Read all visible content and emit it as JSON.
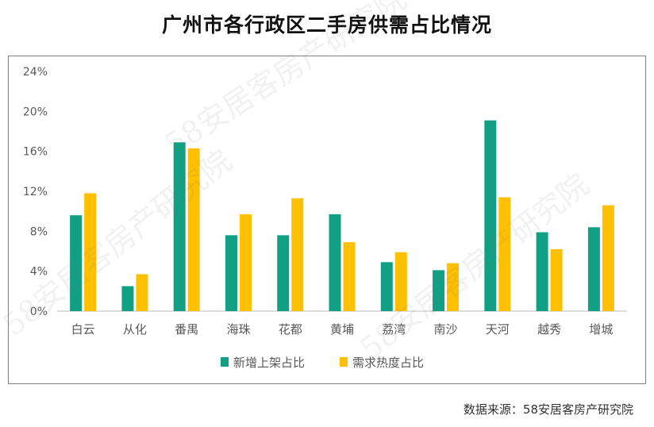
{
  "chart_data": {
    "type": "bar",
    "title": "广州市各行政区二手房供需占比情况",
    "categories": [
      "白云",
      "从化",
      "番禺",
      "海珠",
      "花都",
      "黄埔",
      "荔湾",
      "南沙",
      "天河",
      "越秀",
      "增城"
    ],
    "series": [
      {
        "name": "新增上架占比",
        "color": "#12a085",
        "values": [
          9.6,
          2.5,
          16.9,
          7.6,
          7.6,
          9.7,
          4.9,
          4.1,
          19.1,
          7.9,
          8.4
        ]
      },
      {
        "name": "需求热度占比",
        "color": "#ffc000",
        "values": [
          11.8,
          3.7,
          16.3,
          9.7,
          11.3,
          6.9,
          5.9,
          4.8,
          11.4,
          6.2,
          10.6
        ]
      }
    ],
    "ylim": [
      0,
      24
    ],
    "yticks": [
      "0%",
      "4%",
      "8%",
      "12%",
      "16%",
      "20%",
      "24%"
    ],
    "xlabel": "",
    "ylabel": "",
    "legend": "bottom",
    "grid": false
  },
  "source": "数据来源：58安居客房产研究院",
  "watermark": "58安居客房产研究院"
}
